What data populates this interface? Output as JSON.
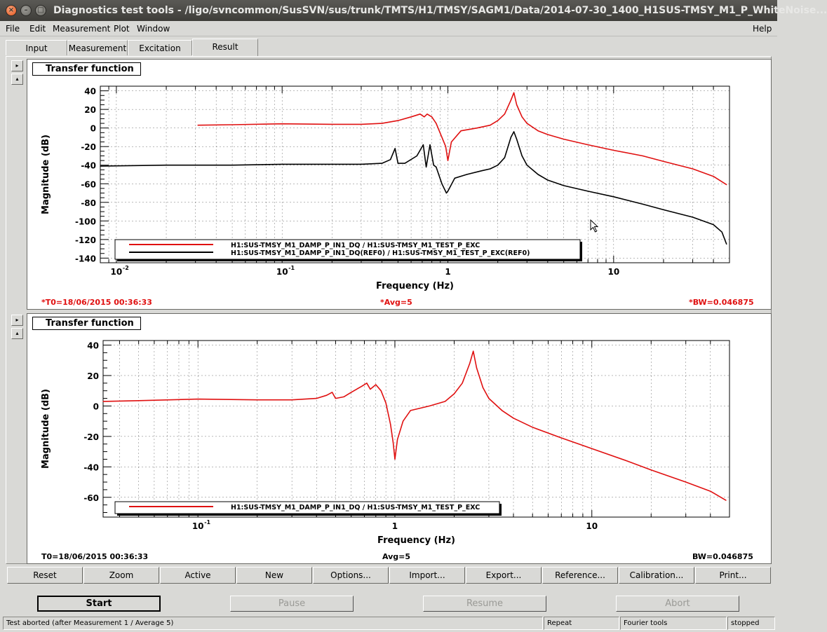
{
  "window": {
    "title": "Diagnostics test tools - /ligo/svncommon/SusSVN/sus/trunk/TMTS/H1/TMSY/SAGM1/Data/2014-07-30_1400_H1SUS-TMSY_M1_P_WhiteNoise..."
  },
  "menu": {
    "file": "File",
    "edit": "Edit",
    "measurement": "Measurement",
    "plot": "Plot",
    "window": "Window",
    "help": "Help"
  },
  "tabs": {
    "input": "Input",
    "measurement": "Measurement",
    "excitation": "Excitation",
    "result": "Result"
  },
  "side_buttons": {
    "right": "▸",
    "up": "▴"
  },
  "plot1": {
    "label": "Transfer function",
    "status_t0": "*T0=18/06/2015 00:36:33",
    "status_avg": "*Avg=5",
    "status_bw": "*BW=0.046875"
  },
  "plot2": {
    "label": "Transfer function",
    "status_t0": "T0=18/06/2015 00:36:33",
    "status_avg": "Avg=5",
    "status_bw": "BW=0.046875"
  },
  "colors": {
    "red": "#e01010",
    "black": "#000000"
  },
  "icons": {
    "cursor": "mouse-pointer-icon"
  },
  "chart_data": [
    {
      "type": "line",
      "title": "",
      "xlabel": "Frequency (Hz)",
      "ylabel": "Magnitude (dB)",
      "xscale": "log",
      "xlim": [
        0.008,
        50
      ],
      "ylim": [
        -145,
        45
      ],
      "x_ticks": [
        "10",
        "10",
        "1",
        "10"
      ],
      "x_tick_exps": [
        "-2",
        "-1",
        "",
        ""
      ],
      "y_ticks": [
        "40",
        "20",
        "0",
        "-20",
        "-40",
        "-60",
        "-80",
        "-100",
        "-120",
        "-140"
      ],
      "y_tick_values": [
        40,
        20,
        0,
        -20,
        -40,
        -60,
        -80,
        -100,
        -120,
        -140
      ],
      "grid": true,
      "legend_position": "bottom-left",
      "series": [
        {
          "name": "H1:SUS-TMSY_M1_DAMP_P_IN1_DQ / H1:SUS-TMSY_M1_TEST_P_EXC",
          "color": "#e01010",
          "x": [
            0.031,
            0.05,
            0.1,
            0.2,
            0.3,
            0.4,
            0.5,
            0.6,
            0.68,
            0.72,
            0.75,
            0.8,
            0.85,
            0.92,
            0.97,
            1.0,
            1.05,
            1.2,
            1.5,
            1.8,
            2.0,
            2.2,
            2.4,
            2.5,
            2.6,
            2.8,
            3.0,
            3.5,
            4.0,
            5.0,
            7.0,
            10.0,
            15.0,
            20.0,
            30.0,
            40.0,
            48.0
          ],
          "y": [
            3,
            3.5,
            4.5,
            4,
            4,
            5,
            8,
            12,
            15,
            12,
            15,
            12,
            5,
            -10,
            -20,
            -35,
            -15,
            -3,
            0,
            3,
            8,
            15,
            30,
            38,
            25,
            12,
            5,
            -3,
            -7,
            -12,
            -18,
            -24,
            -30,
            -36,
            -44,
            -52,
            -61
          ]
        },
        {
          "name": "H1:SUS-TMSY_M1_DAMP_P_IN1_DQ(REF0) / H1:SUS-TMSY_M1_TEST_P_EXC(REF0)",
          "color": "#000000",
          "x": [
            0.008,
            0.02,
            0.05,
            0.1,
            0.2,
            0.3,
            0.4,
            0.45,
            0.48,
            0.5,
            0.55,
            0.65,
            0.71,
            0.74,
            0.78,
            0.82,
            0.85,
            0.92,
            0.98,
            1.0,
            1.1,
            1.3,
            1.6,
            1.8,
            2.0,
            2.2,
            2.4,
            2.5,
            2.6,
            2.8,
            3.0,
            3.5,
            4.0,
            5.0,
            7.0,
            10.0,
            15.0,
            20.0,
            30.0,
            40.0,
            45.0,
            48.0
          ],
          "y": [
            -41,
            -40,
            -40,
            -39,
            -39,
            -39,
            -38,
            -34,
            -22,
            -38,
            -38,
            -30,
            -18,
            -42,
            -18,
            -40,
            -42,
            -60,
            -70,
            -68,
            -54,
            -50,
            -46,
            -44,
            -40,
            -32,
            -10,
            -4,
            -12,
            -30,
            -40,
            -50,
            -56,
            -62,
            -68,
            -74,
            -82,
            -88,
            -96,
            -104,
            -112,
            -125
          ]
        }
      ]
    },
    {
      "type": "line",
      "title": "",
      "xlabel": "Frequency (Hz)",
      "ylabel": "Magnitude (dB)",
      "xscale": "log",
      "xlim": [
        0.033,
        50
      ],
      "ylim": [
        -73,
        43
      ],
      "x_ticks": [
        "10",
        "1",
        "10"
      ],
      "x_tick_exps": [
        "-1",
        "",
        ""
      ],
      "y_ticks": [
        "40",
        "20",
        "0",
        "-20",
        "-40",
        "-60"
      ],
      "y_tick_values": [
        40,
        20,
        0,
        -20,
        -40,
        -60
      ],
      "grid": true,
      "legend_position": "bottom-left",
      "series": [
        {
          "name": "H1:SUS-TMSY_M1_DAMP_P_IN1_DQ / H1:SUS-TMSY_M1_TEST_P_EXC",
          "color": "#e01010",
          "x": [
            0.033,
            0.05,
            0.1,
            0.2,
            0.3,
            0.4,
            0.45,
            0.48,
            0.5,
            0.55,
            0.6,
            0.68,
            0.72,
            0.75,
            0.8,
            0.85,
            0.9,
            0.95,
            0.98,
            1.0,
            1.03,
            1.1,
            1.2,
            1.5,
            1.8,
            2.0,
            2.2,
            2.4,
            2.5,
            2.6,
            2.8,
            3.0,
            3.5,
            4.0,
            5.0,
            7.0,
            10.0,
            15.0,
            20.0,
            30.0,
            40.0,
            48.0
          ],
          "y": [
            3,
            3.5,
            4.5,
            4,
            4,
            5,
            7,
            9,
            5,
            6,
            9,
            13,
            15,
            11,
            14,
            10,
            2,
            -12,
            -24,
            -35,
            -22,
            -10,
            -3,
            0,
            3,
            8,
            15,
            28,
            36,
            25,
            12,
            5,
            -3,
            -8,
            -14,
            -21,
            -28,
            -36,
            -42,
            -50,
            -56,
            -62
          ]
        }
      ]
    }
  ],
  "buttons": {
    "reset": "Reset",
    "zoom": "Zoom",
    "active": "Active",
    "new": "New",
    "options": "Options...",
    "import": "Import...",
    "export": "Export...",
    "reference": "Reference...",
    "calibration": "Calibration...",
    "print": "Print..."
  },
  "controls": {
    "start": "Start",
    "pause": "Pause",
    "resume": "Resume",
    "abort": "Abort"
  },
  "statusbar": {
    "message": "Test aborted (after Measurement 1 / Average 5)",
    "mode": "Repeat",
    "tool": "Fourier tools",
    "state": "stopped"
  }
}
